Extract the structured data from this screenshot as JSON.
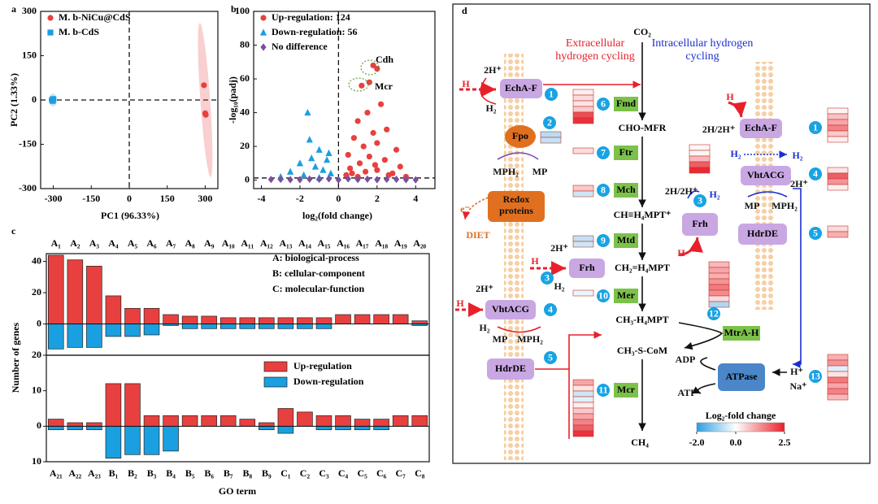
{
  "panel_labels": [
    "a",
    "b",
    "c",
    "d"
  ],
  "chart_data": [
    {
      "type": "scatter",
      "xlabel": "PC1 (96.33%)",
      "ylabel": "PC2 (1.33%)",
      "xlim": [
        -350,
        350
      ],
      "ylim": [
        -300,
        300
      ],
      "xticks": [
        -300,
        -150,
        0,
        150,
        300
      ],
      "yticks": [
        -300,
        -150,
        0,
        150,
        300
      ],
      "ref_lines": {
        "x": 0,
        "y": 0
      },
      "legend": "upper left",
      "series": [
        {
          "name": "M. b-NiCu@CdS",
          "color": "#e8403f",
          "marker": "circle",
          "x": [
            295,
            300,
            302
          ],
          "values": [
            50,
            -45,
            -50
          ]
        },
        {
          "name": "M. b-CdS",
          "color": "#1a9fe0",
          "marker": "square",
          "x": [
            -305,
            -300,
            -302
          ],
          "values": [
            0,
            3,
            -3
          ]
        }
      ]
    },
    {
      "type": "scatter",
      "xlabel": "log₂(fold change)",
      "ylabel": "-log₁₀(padj)",
      "xlim": [
        -4.4,
        5
      ],
      "ylim": [
        -5,
        100
      ],
      "xticks": [
        -4,
        -2,
        0,
        2,
        4
      ],
      "yticks": [
        0,
        20,
        40,
        60,
        80,
        100
      ],
      "ref_lines": {
        "x": 0,
        "y": 1.3
      },
      "legend": "upper left",
      "annotations": [
        "Cdh",
        "Mcr"
      ],
      "series": [
        {
          "name": "Up-regulation: 124",
          "color": "#e8403f",
          "marker": "circle",
          "x": [
            1.8,
            2.0,
            1.6,
            1.2,
            2.2,
            1.5,
            1.0,
            2.5,
            1.8,
            0.8,
            2.0,
            1.3,
            3.0,
            0.5,
            1.6,
            2.4,
            1.1,
            3.2,
            0.6,
            2.0,
            1.4,
            2.8,
            0.4,
            3.5,
            1.0,
            2.6,
            1.9,
            0.7
          ],
          "values": [
            68,
            66,
            58,
            56,
            45,
            40,
            35,
            30,
            28,
            25,
            22,
            20,
            18,
            15,
            14,
            12,
            10,
            8,
            7,
            6,
            5,
            4,
            3,
            2,
            2,
            3,
            9,
            4
          ]
        },
        {
          "name": "Down-regulation: 56",
          "color": "#1a9fe0",
          "marker": "triangle",
          "x": [
            -1.6,
            -1.5,
            -1.0,
            -0.5,
            -2.0,
            -1.2,
            -0.8,
            -2.5,
            -0.4,
            -1.8,
            -3.0,
            -1.0,
            -0.6,
            -1.4
          ],
          "values": [
            40,
            24,
            18,
            16,
            10,
            8,
            6,
            5,
            4,
            3,
            2,
            1.5,
            12,
            13
          ]
        },
        {
          "name": "No difference",
          "color": "#7b4fa0",
          "marker": "diamond",
          "x": [
            -3.5,
            -3.0,
            -2.5,
            -2.0,
            -1.5,
            -1.0,
            -0.5,
            0.0,
            0.5,
            1.0,
            1.5,
            2.0,
            2.5,
            3.0,
            3.5,
            4.0
          ],
          "values": [
            0.4,
            0.5,
            0.3,
            0.3,
            0.6,
            0.5,
            0.8,
            0.2,
            0.8,
            0.4,
            0.6,
            0.3,
            0.5,
            0.5,
            0.3,
            0.2
          ]
        }
      ]
    },
    {
      "type": "bar",
      "ylabel": "Number of genes",
      "xtick_position": "top",
      "annotations": [
        "A: biological-process",
        "B: cellular-component",
        "C: molecular-function"
      ],
      "ylim": [
        -20,
        45
      ],
      "yticks": [
        {
          "value": -20,
          "label": "20"
        },
        0,
        20,
        40
      ],
      "categories": [
        "A₁",
        "A₂",
        "A₃",
        "A₄",
        "A₅",
        "A₆",
        "A₇",
        "A₈",
        "A₉",
        "A₁₀",
        "A₁₁",
        "A₁₂",
        "A₁₃",
        "A₁₄",
        "A₁₅",
        "A₁₆",
        "A₁₇",
        "A₁₈",
        "A₁₉",
        "A₂₀"
      ],
      "series": [
        {
          "color": "#e8403f",
          "values": [
            44,
            41,
            37,
            18,
            10,
            10,
            6,
            5,
            5,
            4,
            4,
            4,
            4,
            4,
            4,
            6,
            6,
            6,
            6,
            2
          ]
        },
        {
          "color": "#1a9fe0",
          "values": [
            -16,
            -15,
            -15,
            -8,
            -8,
            -7,
            -1,
            -3,
            -3,
            -3,
            -3,
            -3,
            -3,
            -3,
            -3,
            0,
            0,
            0,
            0,
            -1
          ]
        }
      ]
    },
    {
      "type": "bar",
      "xlabel": "GO term",
      "xtick_position": "bottom",
      "legend": "upper right",
      "ylim": [
        -10,
        20
      ],
      "yticks": [
        {
          "value": -10,
          "label": "10"
        },
        0,
        10
      ],
      "categories": [
        "A₂₁",
        "A₂₂",
        "A₂₃",
        "B₁",
        "B₂",
        "B₃",
        "B₄",
        "B₅",
        "B₆",
        "B₇",
        "B₈",
        "B₉",
        "C₁",
        "C₂",
        "C₃",
        "C₄",
        "C₅",
        "C₆",
        "C₇",
        "C₈"
      ],
      "series": [
        {
          "name": "Up-regulation",
          "color": "#e8403f",
          "values": [
            2,
            1,
            1,
            12,
            12,
            3,
            3,
            3,
            3,
            3,
            2,
            1,
            5,
            4,
            3,
            3,
            2,
            2,
            3,
            3
          ]
        },
        {
          "name": "Down-regulation",
          "color": "#1a9fe0",
          "values": [
            -1,
            -1,
            -1,
            -9,
            -8,
            -8,
            -7,
            0,
            0,
            0,
            0,
            -1,
            -2,
            0,
            -1,
            -1,
            -1,
            -1,
            0,
            0
          ]
        }
      ]
    }
  ],
  "diagram": {
    "regions": [
      {
        "text": "Extracellular hydrogen cycling",
        "color": "#e8202a"
      },
      {
        "text": "Intracellular hydrogen cycling",
        "color": "#1a2fd0"
      }
    ],
    "metabolites": [
      "CO₂",
      "CHO-MFR",
      "CH≡H₄MPT⁺",
      "CH₂=H₄MPT",
      "CH₃-H₄MPT",
      "CH₃-S-CoM",
      "CH₄"
    ],
    "enzymes": [
      {
        "label": "Fmd",
        "number": "6",
        "heatmap": [
          0.2,
          0.4,
          0.3,
          0.6,
          2.0,
          2.3
        ]
      },
      {
        "label": "Ftr",
        "number": "7",
        "heatmap": [
          0.4
        ]
      },
      {
        "label": "Mch",
        "number": "8",
        "heatmap": [
          0.6,
          -0.5
        ]
      },
      {
        "label": "Mtd",
        "number": "9",
        "heatmap": [
          -0.6,
          -0.5
        ]
      },
      {
        "label": "Mer",
        "number": "10",
        "heatmap": [
          -0.2
        ]
      },
      {
        "label": "Mcr",
        "number": "11",
        "heatmap": [
          1.0,
          0.3,
          -0.5,
          -0.3,
          0.2,
          0.6,
          1.0,
          1.4,
          1.8,
          2.3
        ]
      },
      {
        "label": "MtrA-H",
        "number": "12",
        "heatmap": [
          0.8,
          1.0,
          0.9,
          1.2,
          1.5,
          1.3,
          0.4,
          -0.8
        ]
      }
    ],
    "complexes": [
      {
        "label": "EchA-F",
        "number": "1"
      },
      {
        "label": "Fpo",
        "number": "2",
        "heatmap": [
          -0.7,
          -0.6
        ]
      },
      {
        "label": "Redox proteins"
      },
      {
        "label": "Frh",
        "number": "3"
      },
      {
        "label": "VhtACG",
        "number": "4"
      },
      {
        "label": "HdrDE",
        "number": "5"
      },
      {
        "label": "EchA-F",
        "number": "1",
        "heatmap": [
          0.1,
          0.7,
          1.0,
          1.4,
          0.6,
          0.2
        ]
      },
      {
        "label": "VhtACG",
        "number": "4",
        "heatmap": [
          0.3,
          1.8,
          1.2,
          0.2
        ]
      },
      {
        "label": "HdrDE",
        "number": "5",
        "heatmap": [
          0.4,
          0.9
        ]
      },
      {
        "label": "Frh",
        "number": "3",
        "heatmap": [
          0.1,
          0.1,
          0.8,
          1.8,
          2.4
        ]
      },
      {
        "label": "ATPase",
        "number": "13",
        "heatmap": [
          0.9,
          1.2,
          -0.3,
          0.3,
          1.5,
          1.0,
          1.4,
          0.8
        ]
      }
    ],
    "labels": [
      {
        "text": "2H⁺",
        "color": "#111"
      },
      {
        "text": "H",
        "color": "#e8202a"
      },
      {
        "text": "H₂",
        "color": "#111"
      },
      {
        "text": "MPH₂",
        "color": "#111"
      },
      {
        "text": "MP",
        "color": "#111"
      },
      {
        "text": "e⁻",
        "color": "#e07020"
      },
      {
        "text": "DIET",
        "color": "#e07020"
      },
      {
        "text": "2H⁺",
        "color": "#111"
      },
      {
        "text": "H",
        "color": "#e8202a"
      },
      {
        "text": "H₂",
        "color": "#111"
      },
      {
        "text": "2H⁺",
        "color": "#111"
      },
      {
        "text": "H",
        "color": "#e8202a"
      },
      {
        "text": "H₂",
        "color": "#111"
      },
      {
        "text": "MP",
        "color": "#111"
      },
      {
        "text": "MPH₂",
        "color": "#111"
      },
      {
        "text": "H",
        "color": "#e8202a"
      },
      {
        "text": "2H/2H⁺",
        "color": "#111"
      },
      {
        "text": "H₂",
        "color": "#1a2fd0"
      },
      {
        "text": "H₂",
        "color": "#1a2fd0"
      },
      {
        "text": "2H⁺",
        "color": "#111"
      },
      {
        "text": "MP",
        "color": "#111"
      },
      {
        "text": "MPH₂",
        "color": "#111"
      },
      {
        "text": "2H/2H⁺",
        "color": "#111"
      },
      {
        "text": "H₂",
        "color": "#1a2fd0"
      },
      {
        "text": "H",
        "color": "#e8202a"
      },
      {
        "text": "ADP",
        "color": "#111"
      },
      {
        "text": "ATP",
        "color": "#111"
      },
      {
        "text": "H⁺",
        "color": "#111"
      },
      {
        "text": "Na⁺",
        "color": "#111"
      }
    ],
    "colorbar": {
      "title": "Log₂-fold change",
      "min": -2,
      "max": 2.5,
      "low_color": "#2f9ee0",
      "high_color": "#e8202a",
      "ticks": [
        {
          "value": -2,
          "label": "-2.0"
        },
        {
          "value": 0,
          "label": "0.0"
        },
        2.5
      ]
    }
  }
}
